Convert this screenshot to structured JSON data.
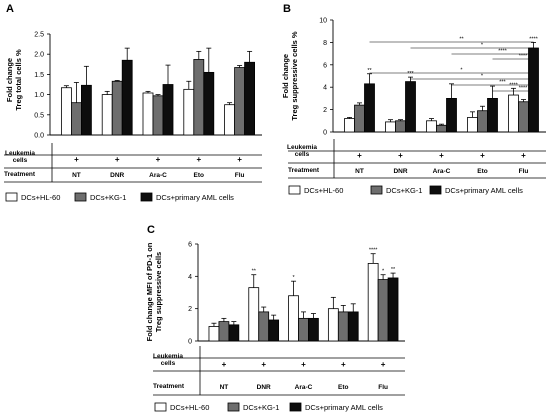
{
  "panels": [
    {
      "label": "A",
      "ylabel_line1": "Fold change",
      "ylabel_line2": "Treg total cells %",
      "ylim": [
        0,
        2.5
      ],
      "ticks": [
        "0.0",
        "0.5",
        "1.0",
        "1.5",
        "2.0",
        "2.5"
      ]
    },
    {
      "label": "B",
      "ylabel_line1": "Fold change",
      "ylabel_line2": "Treg suppressive cells %",
      "ylim": [
        0,
        10
      ],
      "ticks": [
        "0",
        "2",
        "4",
        "6",
        "8",
        "10"
      ]
    },
    {
      "label": "C",
      "ylabel_line1": "Fold change MFI of PD-1 on",
      "ylabel_line2": "Treg suppressive cells",
      "ylim": [
        0,
        6
      ],
      "ticks": [
        "0",
        "2",
        "4",
        "6"
      ]
    }
  ],
  "table": {
    "leukemia_label_line1": "Leukemia",
    "leukemia_label_line2": "cells",
    "treatment_label": "Treatment",
    "plus": "+",
    "treatments": [
      "NT",
      "DNR",
      "Ara-C",
      "Eto",
      "Flu"
    ]
  },
  "legend": {
    "items": [
      "DCs+HL-60",
      "DCs+KG-1",
      "DCs+primary AML cells"
    ]
  },
  "colors": {
    "hl60": "#ffffff",
    "kg1": "#6e6e6e",
    "aml": "#0d0d0d",
    "axis": "#000000",
    "bracket": "#555555"
  },
  "chart_data": [
    {
      "type": "bar",
      "panel": "A",
      "categories": [
        "NT",
        "DNR",
        "Ara-C",
        "Eto",
        "Flu"
      ],
      "ylabel": "Fold change Treg total cells %",
      "ylim": [
        0,
        2.5
      ],
      "series": [
        {
          "name": "DCs+HL-60",
          "values": [
            1.17,
            1.0,
            1.04,
            1.13,
            0.75
          ],
          "errors": [
            0.05,
            0.08,
            0.04,
            0.2,
            0.05
          ]
        },
        {
          "name": "DCs+KG-1",
          "values": [
            0.8,
            1.33,
            0.97,
            1.87,
            1.67
          ],
          "errors": [
            0.5,
            0.02,
            0.03,
            0.2,
            0.05
          ]
        },
        {
          "name": "DCs+primary AML cells",
          "values": [
            1.23,
            1.85,
            1.25,
            1.55,
            1.8
          ],
          "errors": [
            0.47,
            0.3,
            0.48,
            0.6,
            0.27
          ]
        }
      ],
      "significance": []
    },
    {
      "type": "bar",
      "panel": "B",
      "categories": [
        "NT",
        "DNR",
        "Ara-C",
        "Eto",
        "Flu"
      ],
      "ylabel": "Fold change Treg suppressive cells %",
      "ylim": [
        0,
        10
      ],
      "series": [
        {
          "name": "DCs+HL-60",
          "values": [
            1.2,
            0.9,
            1.0,
            1.3,
            3.3
          ],
          "errors": [
            0.1,
            0.2,
            0.2,
            0.5,
            0.6
          ]
        },
        {
          "name": "DCs+KG-1",
          "values": [
            2.4,
            1.0,
            0.6,
            1.9,
            2.7
          ],
          "errors": [
            0.2,
            0.1,
            0.1,
            0.4,
            0.2
          ]
        },
        {
          "name": "DCs+primary AML cells",
          "values": [
            4.3,
            4.5,
            3.0,
            3.0,
            7.5
          ],
          "errors": [
            0.9,
            0.4,
            1.3,
            1.1,
            0.5
          ]
        }
      ],
      "significance": [
        {
          "category": "NT",
          "series": "DCs+primary AML cells",
          "label": "**"
        },
        {
          "category": "DNR",
          "series": "DCs+primary AML cells",
          "label": "***"
        },
        {
          "category": "Flu",
          "series": "DCs+HL-60",
          "label": "****"
        },
        {
          "category": "Flu",
          "series": "DCs+primary AML cells",
          "label": "****"
        }
      ],
      "brackets": [
        {
          "from": "NT",
          "to": "Flu",
          "label": "**"
        },
        {
          "from": "DNR",
          "to": "Flu",
          "label": "*"
        },
        {
          "from": "Ara-C",
          "to": "Flu",
          "label": "****"
        },
        {
          "from": "Eto",
          "to": "Flu",
          "label": "****"
        },
        {
          "from": "NT",
          "to": "Flu",
          "label": "*"
        },
        {
          "from": "DNR",
          "to": "Flu",
          "label": "*"
        },
        {
          "from": "Ara-C",
          "to": "Flu",
          "label": "***"
        },
        {
          "from": "Eto",
          "to": "Flu",
          "label": "****"
        }
      ]
    },
    {
      "type": "bar",
      "panel": "C",
      "categories": [
        "NT",
        "DNR",
        "Ara-C",
        "Eto",
        "Flu"
      ],
      "ylabel": "Fold change MFI of PD-1 on Treg suppressive cells",
      "ylim": [
        0,
        6
      ],
      "series": [
        {
          "name": "DCs+HL-60",
          "values": [
            0.9,
            3.3,
            2.8,
            2.0,
            4.8
          ],
          "errors": [
            0.2,
            0.8,
            0.9,
            0.7,
            0.6
          ]
        },
        {
          "name": "DCs+KG-1",
          "values": [
            1.2,
            1.8,
            1.4,
            1.8,
            3.8
          ],
          "errors": [
            0.2,
            0.3,
            0.4,
            0.4,
            0.3
          ]
        },
        {
          "name": "DCs+primary AML cells",
          "values": [
            1.0,
            1.3,
            1.4,
            1.8,
            3.9
          ],
          "errors": [
            0.2,
            0.3,
            0.3,
            0.5,
            0.3
          ]
        }
      ],
      "significance": [
        {
          "category": "DNR",
          "series": "DCs+HL-60",
          "label": "**"
        },
        {
          "category": "Ara-C",
          "series": "DCs+HL-60",
          "label": "*"
        },
        {
          "category": "Flu",
          "series": "DCs+HL-60",
          "label": "****"
        },
        {
          "category": "Flu",
          "series": "DCs+KG-1",
          "label": "*"
        },
        {
          "category": "Flu",
          "series": "DCs+primary AML cells",
          "label": "**"
        }
      ]
    }
  ]
}
